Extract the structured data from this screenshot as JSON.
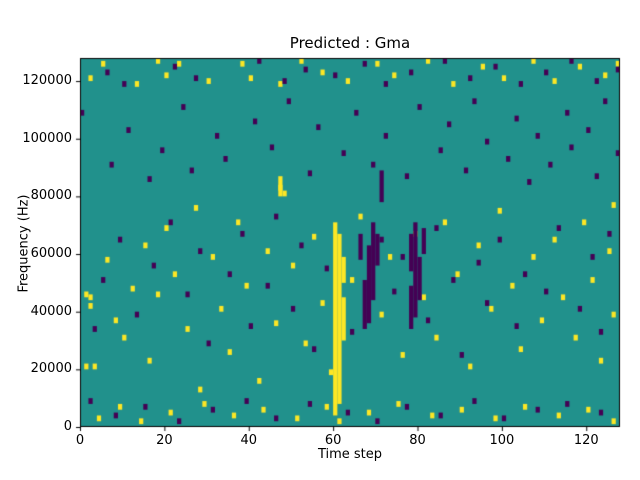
{
  "chart_data": {
    "type": "heatmap",
    "title": "Predicted : Gma",
    "xlabel": "Time step",
    "ylabel": "Frequency (Hz)",
    "x_range": [
      0,
      128
    ],
    "y_range": [
      0,
      128000
    ],
    "x_ticks": [
      0,
      20,
      40,
      60,
      80,
      100,
      120
    ],
    "y_ticks": [
      0,
      20000,
      40000,
      60000,
      80000,
      100000,
      120000
    ],
    "grid_cols": 128,
    "grid_rows": 128,
    "legend": "none",
    "grid": false,
    "colors": {
      "background": "#21918c",
      "high": "#fde725",
      "low": "#440154",
      "axis": "#000000"
    },
    "cells": {
      "yellow": [
        [
          2,
          120
        ],
        [
          5,
          125
        ],
        [
          13,
          118
        ],
        [
          18,
          126
        ],
        [
          20,
          121
        ],
        [
          23,
          125
        ],
        [
          30,
          119
        ],
        [
          38,
          125
        ],
        [
          40,
          120
        ],
        [
          47,
          118
        ],
        [
          52,
          126
        ],
        [
          57,
          122
        ],
        [
          63,
          119
        ],
        [
          70,
          125
        ],
        [
          74,
          121
        ],
        [
          82,
          126
        ],
        [
          88,
          118
        ],
        [
          95,
          124
        ],
        [
          100,
          120
        ],
        [
          107,
          126
        ],
        [
          112,
          119
        ],
        [
          118,
          124
        ],
        [
          124,
          121
        ],
        [
          127,
          125
        ],
        [
          1,
          45
        ],
        [
          2,
          44
        ],
        [
          2,
          41
        ],
        [
          3,
          20
        ],
        [
          1,
          20
        ],
        [
          6,
          57
        ],
        [
          8,
          36
        ],
        [
          10,
          30
        ],
        [
          12,
          47
        ],
        [
          15,
          62
        ],
        [
          16,
          22
        ],
        [
          18,
          45
        ],
        [
          20,
          68
        ],
        [
          22,
          52
        ],
        [
          25,
          33
        ],
        [
          27,
          75
        ],
        [
          28,
          12
        ],
        [
          31,
          58
        ],
        [
          33,
          40
        ],
        [
          35,
          25
        ],
        [
          37,
          70
        ],
        [
          39,
          48
        ],
        [
          42,
          15
        ],
        [
          44,
          60
        ],
        [
          46,
          35
        ],
        [
          47,
          82
        ],
        [
          48,
          80
        ],
        [
          50,
          55
        ],
        [
          53,
          28
        ],
        [
          55,
          65
        ],
        [
          57,
          42
        ],
        [
          59,
          18
        ],
        [
          64,
          50
        ],
        [
          66,
          72
        ],
        [
          71,
          38
        ],
        [
          73,
          58
        ],
        [
          76,
          24
        ],
        [
          79,
          66
        ],
        [
          81,
          44
        ],
        [
          84,
          30
        ],
        [
          86,
          70
        ],
        [
          89,
          52
        ],
        [
          92,
          20
        ],
        [
          94,
          62
        ],
        [
          97,
          40
        ],
        [
          99,
          74
        ],
        [
          102,
          48
        ],
        [
          104,
          26
        ],
        [
          107,
          58
        ],
        [
          109,
          36
        ],
        [
          112,
          64
        ],
        [
          114,
          44
        ],
        [
          117,
          30
        ],
        [
          119,
          70
        ],
        [
          121,
          50
        ],
        [
          123,
          22
        ],
        [
          125,
          60
        ],
        [
          126,
          38
        ],
        [
          126,
          76
        ],
        [
          4,
          2
        ],
        [
          9,
          6
        ],
        [
          14,
          1
        ],
        [
          21,
          4
        ],
        [
          29,
          7
        ],
        [
          36,
          3
        ],
        [
          43,
          5
        ],
        [
          51,
          2
        ],
        [
          58,
          6
        ],
        [
          61,
          1
        ],
        [
          68,
          4
        ],
        [
          75,
          7
        ],
        [
          83,
          3
        ],
        [
          90,
          5
        ],
        [
          98,
          2
        ],
        [
          105,
          6
        ],
        [
          113,
          3
        ],
        [
          120,
          5
        ],
        [
          126,
          1
        ]
      ],
      "yellow_runs": [
        [
          60,
          4,
          70
        ],
        [
          61,
          8,
          66
        ],
        [
          62,
          30,
          44
        ],
        [
          62,
          50,
          58
        ],
        [
          47,
          80,
          86
        ]
      ],
      "dark": [
        [
          3,
          33
        ],
        [
          0,
          108
        ],
        [
          7,
          90
        ],
        [
          11,
          102
        ],
        [
          16,
          85
        ],
        [
          19,
          95
        ],
        [
          24,
          110
        ],
        [
          26,
          88
        ],
        [
          32,
          100
        ],
        [
          34,
          92
        ],
        [
          41,
          105
        ],
        [
          45,
          96
        ],
        [
          49,
          112
        ],
        [
          54,
          87
        ],
        [
          56,
          103
        ],
        [
          62,
          94
        ],
        [
          65,
          108
        ],
        [
          69,
          90
        ],
        [
          72,
          100
        ],
        [
          77,
          86
        ],
        [
          80,
          110
        ],
        [
          85,
          95
        ],
        [
          87,
          104
        ],
        [
          91,
          88
        ],
        [
          93,
          112
        ],
        [
          96,
          98
        ],
        [
          101,
          92
        ],
        [
          103,
          106
        ],
        [
          106,
          84
        ],
        [
          108,
          100
        ],
        [
          111,
          90
        ],
        [
          115,
          108
        ],
        [
          116,
          96
        ],
        [
          120,
          102
        ],
        [
          122,
          86
        ],
        [
          124,
          112
        ],
        [
          127,
          94
        ],
        [
          5,
          50
        ],
        [
          9,
          64
        ],
        [
          13,
          38
        ],
        [
          17,
          55
        ],
        [
          21,
          70
        ],
        [
          25,
          45
        ],
        [
          28,
          60
        ],
        [
          30,
          28
        ],
        [
          35,
          52
        ],
        [
          38,
          66
        ],
        [
          40,
          34
        ],
        [
          44,
          48
        ],
        [
          46,
          72
        ],
        [
          50,
          40
        ],
        [
          52,
          62
        ],
        [
          55,
          26
        ],
        [
          58,
          54
        ],
        [
          64,
          32
        ],
        [
          71,
          64
        ],
        [
          74,
          46
        ],
        [
          76,
          58
        ],
        [
          82,
          36
        ],
        [
          84,
          68
        ],
        [
          88,
          50
        ],
        [
          90,
          24
        ],
        [
          94,
          56
        ],
        [
          96,
          42
        ],
        [
          99,
          64
        ],
        [
          103,
          34
        ],
        [
          105,
          52
        ],
        [
          110,
          46
        ],
        [
          113,
          68
        ],
        [
          118,
          40
        ],
        [
          121,
          58
        ],
        [
          123,
          32
        ],
        [
          125,
          66
        ],
        [
          6,
          122
        ],
        [
          10,
          118
        ],
        [
          22,
          124
        ],
        [
          27,
          120
        ],
        [
          42,
          126
        ],
        [
          48,
          119
        ],
        [
          53,
          123
        ],
        [
          60,
          121
        ],
        [
          67,
          125
        ],
        [
          72,
          118
        ],
        [
          78,
          122
        ],
        [
          86,
          126
        ],
        [
          92,
          120
        ],
        [
          98,
          124
        ],
        [
          104,
          118
        ],
        [
          110,
          122
        ],
        [
          116,
          126
        ],
        [
          122,
          119
        ],
        [
          127,
          123
        ],
        [
          2,
          8
        ],
        [
          8,
          3
        ],
        [
          15,
          6
        ],
        [
          23,
          1
        ],
        [
          31,
          5
        ],
        [
          39,
          8
        ],
        [
          46,
          2
        ],
        [
          54,
          7
        ],
        [
          63,
          4
        ],
        [
          70,
          1
        ],
        [
          77,
          6
        ],
        [
          85,
          3
        ],
        [
          93,
          8
        ],
        [
          100,
          2
        ],
        [
          108,
          5
        ],
        [
          115,
          7
        ],
        [
          123,
          4
        ]
      ],
      "dark_runs": [
        [
          66,
          58,
          66
        ],
        [
          67,
          34,
          50
        ],
        [
          68,
          36,
          62
        ],
        [
          69,
          44,
          70
        ],
        [
          70,
          56,
          66
        ],
        [
          71,
          78,
          88
        ],
        [
          78,
          34,
          48
        ],
        [
          78,
          54,
          66
        ],
        [
          79,
          38,
          70
        ],
        [
          80,
          44,
          58
        ],
        [
          81,
          60,
          68
        ]
      ]
    }
  }
}
